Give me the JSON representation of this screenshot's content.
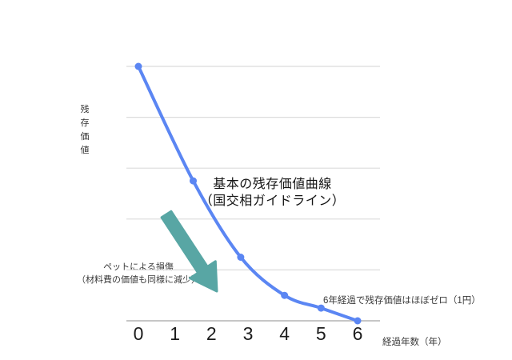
{
  "chart_data": {
    "type": "line",
    "title": "",
    "xlabel": "経過年数（年）",
    "ylabel": "残存価値",
    "x_ticks": [
      "0",
      "1",
      "2",
      "3",
      "4",
      "5",
      "6"
    ],
    "xlim": [
      0,
      6
    ],
    "ylim": [
      0,
      100
    ],
    "grid": "horizontal-only",
    "gridline_values": [
      100,
      80,
      60,
      40,
      20
    ],
    "legend": "none",
    "series": [
      {
        "name": "基本の残存価値曲線（国交相ガイドライン）",
        "x": [
          0,
          1.5,
          2.8,
          4,
          5,
          6
        ],
        "values": [
          100,
          55,
          25,
          10,
          5,
          0
        ],
        "marker": "circle"
      }
    ],
    "annotations": [
      {
        "id": "curve-label",
        "lines": [
          "基本の残存価値曲線",
          "（国交相ガイドライン）"
        ]
      },
      {
        "id": "pet-damage-note",
        "lines": [
          "ペットによる損傷",
          "（材料費の価値も同様に減少）"
        ],
        "arrow": "teal arrow pointing down-right from note toward the curve"
      },
      {
        "id": "year6-note",
        "text": "6年経過で残存価値はほぼゼロ（1円）"
      }
    ]
  },
  "colors": {
    "line": "#5b86f3",
    "marker": "#5b86f3",
    "arrow": "#58a6a4",
    "gridline": "#dcdcdc",
    "axis": "#c6c6c6",
    "background": "#ffffff"
  }
}
